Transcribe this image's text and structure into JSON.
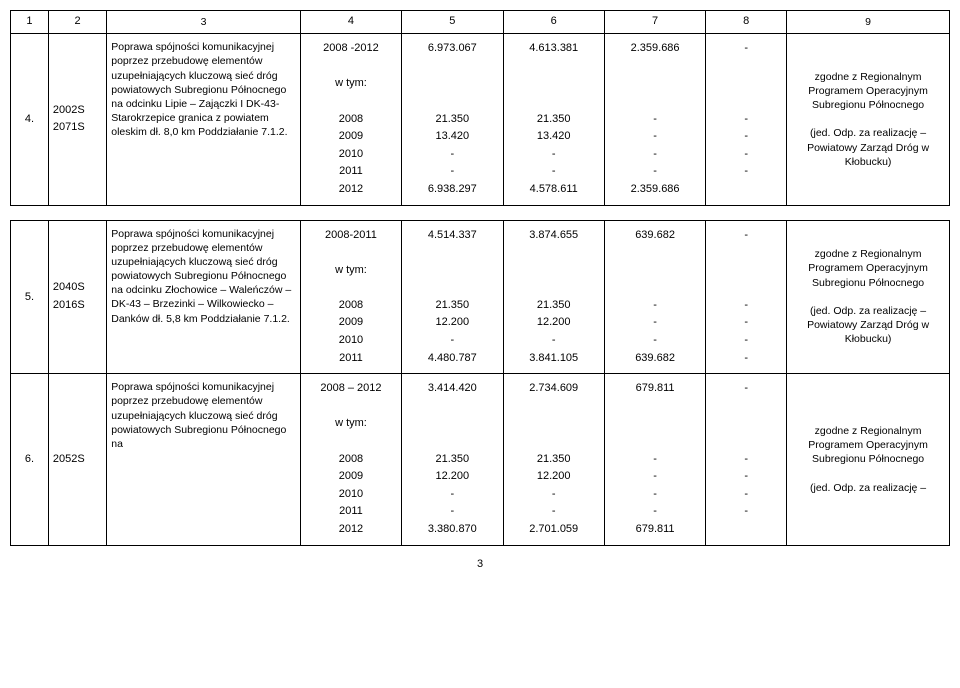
{
  "header": {
    "c1": "1",
    "c2": "2",
    "c3": "3",
    "c4": "4",
    "c5": "5",
    "c6": "6",
    "c7": "7",
    "c8": "8",
    "c9": "9"
  },
  "row4": {
    "num": "4.",
    "codes": "2002S\n2071S",
    "desc": "Poprawa spójności komunikacyjnej poprzez przebudowę elementów uzupełniających kluczową sieć dróg powiatowych Subregionu Północnego na odcinku Lipie – Zajączki I DK-43- Starokrzepice granica z powiatem oleskim dł. 8,0 km Poddziałanie 7.1.2.",
    "c4": "2008 -2012\n\nw tym:\n\n2008\n2009\n2010\n2011\n2012",
    "c5": "6.973.067\n\n\n\n21.350\n13.420\n-\n-\n6.938.297",
    "c6": "4.613.381\n\n\n\n21.350\n13.420\n-\n-\n4.578.611",
    "c7": "2.359.686\n\n\n\n-\n-\n-\n-\n2.359.686",
    "c8": "-\n\n\n\n-\n-\n-\n-",
    "c9": "zgodne z Regionalnym Programem Operacyjnym Subregionu Północnego\n\n(jed. Odp. za realizację – Powiatowy Zarząd Dróg w Kłobucku)"
  },
  "row5": {
    "num": "5.",
    "codes": "2040S\n2016S",
    "desc": "Poprawa spójności komunikacyjnej poprzez przebudowę elementów uzupełniających kluczową sieć dróg powiatowych Subregionu Północnego na odcinku Złochowice – Waleńczów – DK-43 – Brzezinki – Wilkowiecko –Danków dł. 5,8 km Poddziałanie 7.1.2.",
    "c4": "2008-2011\n\nw tym:\n\n2008\n2009\n2010\n2011",
    "c5": "4.514.337\n\n\n\n21.350\n12.200\n-\n4.480.787",
    "c6": "3.874.655\n\n\n\n21.350\n12.200\n-\n3.841.105",
    "c7": "639.682\n\n\n\n-\n-\n-\n639.682",
    "c8": "-\n\n\n\n-\n-\n-\n-",
    "c9": "zgodne z Regionalnym Programem Operacyjnym Subregionu Północnego\n\n(jed. Odp. za realizację – Powiatowy Zarząd Dróg w Kłobucku)"
  },
  "row6": {
    "num": "6.",
    "codes": "2052S",
    "desc": "Poprawa spójności komunikacyjnej poprzez przebudowę elementów uzupełniających kluczową sieć dróg powiatowych Subregionu Północnego na",
    "c4": "2008 – 2012\n\nw tym:\n\n2008\n2009\n2010\n2011\n2012",
    "c5": "3.414.420\n\n\n\n21.350\n12.200\n-\n-\n3.380.870",
    "c6": "2.734.609\n\n\n\n21.350\n12.200\n-\n-\n2.701.059",
    "c7": "679.811\n\n\n\n-\n-\n-\n-\n679.811",
    "c8": "-\n\n\n\n-\n-\n-\n-",
    "c9": "zgodne z Regionalnym Programem Operacyjnym Subregionu Północnego\n\n(jed. Odp. za realizację –"
  },
  "pageNumber": "3"
}
